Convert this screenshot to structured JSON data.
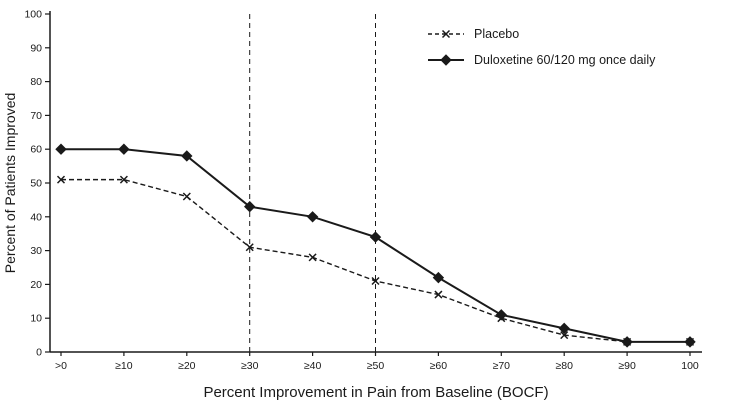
{
  "chart_data": {
    "type": "line",
    "title": "",
    "xlabel": "Percent Improvement in Pain from Baseline (BOCF)",
    "ylabel": "Percent of Patients Improved",
    "ylim": [
      0,
      100
    ],
    "ytick_step": 10,
    "categories": [
      ">0",
      "≥10",
      "≥20",
      "≥30",
      "≥40",
      "≥50",
      "≥60",
      "≥70",
      "≥80",
      "≥90",
      "100"
    ],
    "series": [
      {
        "name": "Placebo",
        "marker": "x",
        "line": "dashed",
        "values": [
          51,
          51,
          46,
          31,
          28,
          21,
          17,
          10,
          5,
          3,
          3
        ]
      },
      {
        "name": "Duloxetine 60/120 mg once daily",
        "marker": "diamond",
        "line": "solid",
        "values": [
          60,
          60,
          58,
          43,
          40,
          34,
          22,
          11,
          7,
          3,
          3
        ]
      }
    ],
    "reference_lines_at": [
      "≥30",
      "≥50"
    ],
    "grid": false,
    "legend_position": "top-right",
    "ink_color": "#1a1a1a"
  }
}
